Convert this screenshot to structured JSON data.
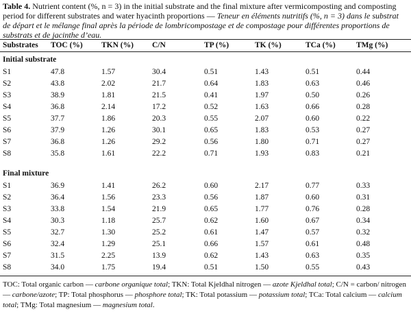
{
  "caption": {
    "label": "Table 4.",
    "segments": [
      {
        "text": " Nutrient content (%, n = 3) in the initial substrate and the final mixture after vermicomposting and composting period for different substrates and water hyacinth proportions — ",
        "italic": false
      },
      {
        "text": "Teneur en éléments nutritifs (%, n = 3) dans le substrat de départ et le mélange final après la période de lombricompostage et de compostage pour différentes proportions de substrats et de jacinthe d’eau.",
        "italic": true
      }
    ]
  },
  "table": {
    "columns": [
      "Substrates",
      "TOC (%)",
      "TKN (%)",
      "C/N",
      "TP (%)",
      "TK (%)",
      "TCa (%)",
      "TMg (%)"
    ],
    "groups": [
      {
        "label": "Initial substrate",
        "rows": [
          [
            "S1",
            "47.8",
            "1.57",
            "30.4",
            "0.51",
            "1.43",
            "0.51",
            "0.44"
          ],
          [
            "S2",
            "43.8",
            "2.02",
            "21.7",
            "0.64",
            "1.83",
            "0.63",
            "0.46"
          ],
          [
            "S3",
            "38.9",
            "1.81",
            "21.5",
            "0.41",
            "1.97",
            "0.50",
            "0.26"
          ],
          [
            "S4",
            "36.8",
            "2.14",
            "17.2",
            "0.52",
            "1.63",
            "0.66",
            "0.28"
          ],
          [
            "S5",
            "37.7",
            "1.86",
            "20.3",
            "0.55",
            "2.07",
            "0.60",
            "0.22"
          ],
          [
            "S6",
            "37.9",
            "1.26",
            "30.1",
            "0.65",
            "1.83",
            "0.53",
            "0.27"
          ],
          [
            "S7",
            "36.8",
            "1.26",
            "29.2",
            "0.56",
            "1.80",
            "0.71",
            "0.27"
          ],
          [
            "S8",
            "35.8",
            "1.61",
            "22.2",
            "0.71",
            "1.93",
            "0.83",
            "0.21"
          ]
        ]
      },
      {
        "label": "Final mixture",
        "rows": [
          [
            "S1",
            "36.9",
            "1.41",
            "26.2",
            "0.60",
            "2.17",
            "0.77",
            "0.33"
          ],
          [
            "S2",
            "36.4",
            "1.56",
            "23.3",
            "0.56",
            "1.87",
            "0.60",
            "0.31"
          ],
          [
            "S3",
            "33.8",
            "1.54",
            "21.9",
            "0.65",
            "1.77",
            "0.76",
            "0.28"
          ],
          [
            "S4",
            "30.3",
            "1.18",
            "25.7",
            "0.62",
            "1.60",
            "0.67",
            "0.34"
          ],
          [
            "S5",
            "32.7",
            "1.30",
            "25.2",
            "0.61",
            "1.47",
            "0.57",
            "0.32"
          ],
          [
            "S6",
            "32.4",
            "1.29",
            "25.1",
            "0.66",
            "1.57",
            "0.61",
            "0.48"
          ],
          [
            "S7",
            "31.5",
            "2.25",
            "13.9",
            "0.62",
            "1.43",
            "0.63",
            "0.35"
          ],
          [
            "S8",
            "34.0",
            "1.75",
            "19.4",
            "0.51",
            "1.50",
            "0.55",
            "0.43"
          ]
        ]
      }
    ]
  },
  "footnote": [
    {
      "text": "TOC: Total organic carbon — ",
      "italic": false
    },
    {
      "text": "carbone organique total",
      "italic": true
    },
    {
      "text": "; TKN: Total Kjeldhal nitrogen — ",
      "italic": false
    },
    {
      "text": "azote Kjeldhal total",
      "italic": true
    },
    {
      "text": "; C/N = carbon/ nitrogen — ",
      "italic": false
    },
    {
      "text": "carbone/azote",
      "italic": true
    },
    {
      "text": "; TP: Total phosphorus — ",
      "italic": false
    },
    {
      "text": "phosphore total",
      "italic": true
    },
    {
      "text": "; TK: Total potassium — ",
      "italic": false
    },
    {
      "text": "potassium total",
      "italic": true
    },
    {
      "text": "; TCa: Total calcium — ",
      "italic": false
    },
    {
      "text": "calcium total",
      "italic": true
    },
    {
      "text": "; TMg: Total magnesium — ",
      "italic": false
    },
    {
      "text": "magnesium total",
      "italic": true
    },
    {
      "text": ".",
      "italic": false
    }
  ]
}
